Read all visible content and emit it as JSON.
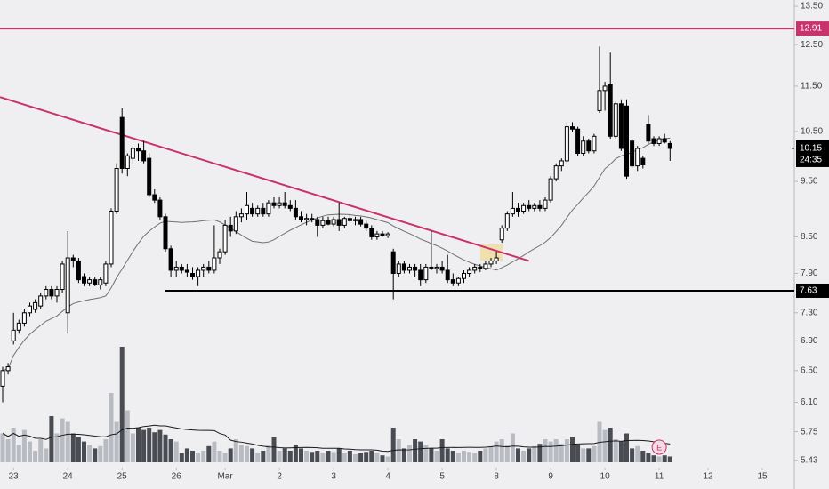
{
  "chart_data": {
    "type": "candlestick",
    "scale": "log",
    "ylim": [
      5.36,
      13.67
    ],
    "yticks": [
      {
        "value": 13.5,
        "label": "13.50"
      },
      {
        "value": 12.5,
        "label": "12.50"
      },
      {
        "value": 11.5,
        "label": "11.50"
      },
      {
        "value": 10.5,
        "label": "10.50"
      },
      {
        "value": 9.5,
        "label": "9.50"
      },
      {
        "value": 8.5,
        "label": "8.50"
      },
      {
        "value": 7.9,
        "label": "7.90"
      },
      {
        "value": 7.3,
        "label": "7.30"
      },
      {
        "value": 6.9,
        "label": "6.90"
      },
      {
        "value": 6.5,
        "label": "6.50"
      },
      {
        "value": 6.1,
        "label": "6.10"
      },
      5.75,
      5.43
    ],
    "xticks": [
      {
        "value": 2,
        "label": "23"
      },
      {
        "value": 12,
        "label": "24"
      },
      {
        "value": 22,
        "label": "25"
      },
      {
        "value": 32,
        "label": "26"
      },
      {
        "value": 41,
        "label": "Mar"
      },
      {
        "value": 51,
        "label": "2"
      },
      {
        "value": 61,
        "label": "3"
      },
      {
        "value": 71,
        "label": "4"
      },
      {
        "value": 81,
        "label": "5"
      },
      {
        "value": 91,
        "label": "8"
      },
      {
        "value": 101,
        "label": "9"
      },
      {
        "value": 111,
        "label": "10"
      },
      {
        "value": 121,
        "label": "11"
      },
      {
        "value": 130,
        "label": "12"
      },
      {
        "value": 140,
        "label": "15"
      }
    ],
    "candles": [
      [
        6.3,
        6.55,
        6.1,
        6.5
      ],
      [
        6.5,
        6.6,
        6.45,
        6.55
      ],
      [
        6.9,
        7.3,
        6.85,
        7.05
      ],
      [
        7.05,
        7.2,
        7.0,
        7.15
      ],
      [
        7.15,
        7.35,
        7.1,
        7.3
      ],
      [
        7.3,
        7.45,
        7.25,
        7.4
      ],
      [
        7.35,
        7.5,
        7.3,
        7.45
      ],
      [
        7.4,
        7.6,
        7.35,
        7.55
      ],
      [
        7.55,
        7.7,
        7.5,
        7.65
      ],
      [
        7.65,
        7.7,
        7.5,
        7.55
      ],
      [
        7.55,
        7.7,
        7.45,
        7.65
      ],
      [
        7.65,
        8.1,
        7.6,
        8.05
      ],
      [
        7.3,
        8.6,
        7.0,
        8.15
      ],
      [
        8.15,
        8.2,
        8.0,
        8.1
      ],
      [
        8.1,
        8.15,
        7.75,
        7.8
      ],
      [
        7.85,
        7.9,
        7.7,
        7.75
      ],
      [
        7.75,
        7.85,
        7.7,
        7.8
      ],
      [
        7.8,
        7.85,
        7.7,
        7.72
      ],
      [
        7.72,
        7.85,
        7.65,
        7.8
      ],
      [
        7.75,
        8.1,
        7.7,
        8.05
      ],
      [
        8.05,
        9.0,
        8.0,
        8.95
      ],
      [
        8.95,
        9.85,
        8.9,
        9.75
      ],
      [
        10.8,
        11.0,
        9.65,
        9.75
      ],
      [
        9.75,
        10.05,
        9.6,
        10.0
      ],
      [
        9.95,
        10.2,
        9.85,
        10.15
      ],
      [
        10.15,
        10.25,
        9.9,
        10.1
      ],
      [
        10.1,
        10.3,
        9.85,
        9.9
      ],
      [
        9.95,
        10.05,
        9.2,
        9.25
      ],
      [
        9.25,
        9.35,
        9.1,
        9.15
      ],
      [
        9.15,
        9.2,
        8.8,
        8.85
      ],
      [
        8.85,
        8.9,
        8.25,
        8.3
      ],
      [
        8.3,
        8.35,
        7.85,
        7.95
      ],
      [
        7.95,
        8.1,
        7.85,
        8.0
      ],
      [
        8.0,
        8.05,
        7.9,
        7.95
      ],
      [
        7.95,
        8.05,
        7.85,
        7.92
      ],
      [
        7.9,
        8.0,
        7.8,
        7.85
      ],
      [
        7.85,
        8.0,
        7.7,
        7.95
      ],
      [
        7.95,
        8.05,
        7.85,
        8.0
      ],
      [
        8.0,
        8.1,
        7.9,
        7.95
      ],
      [
        7.95,
        8.7,
        7.9,
        8.15
      ],
      [
        8.15,
        8.3,
        8.05,
        8.25
      ],
      [
        8.25,
        8.8,
        8.2,
        8.7
      ],
      [
        8.7,
        8.85,
        8.5,
        8.6
      ],
      [
        8.6,
        8.95,
        8.55,
        8.85
      ],
      [
        8.85,
        9.0,
        8.75,
        8.9
      ],
      [
        8.9,
        9.3,
        8.8,
        9.05
      ],
      [
        9.0,
        9.1,
        8.85,
        8.9
      ],
      [
        8.9,
        9.05,
        8.85,
        9.0
      ],
      [
        9.0,
        9.1,
        8.85,
        8.9
      ],
      [
        8.9,
        9.15,
        8.85,
        9.1
      ],
      [
        9.1,
        9.2,
        9.0,
        9.05
      ],
      [
        9.05,
        9.2,
        9.0,
        9.1
      ],
      [
        9.1,
        9.3,
        9.0,
        9.05
      ],
      [
        9.05,
        9.15,
        8.95,
        9.0
      ],
      [
        9.0,
        9.15,
        8.8,
        8.85
      ],
      [
        8.85,
        8.95,
        8.75,
        8.8
      ],
      [
        8.8,
        8.9,
        8.7,
        8.82
      ],
      [
        8.82,
        8.9,
        8.75,
        8.8
      ],
      [
        8.8,
        8.85,
        8.5,
        8.7
      ],
      [
        8.7,
        8.85,
        8.65,
        8.78
      ],
      [
        8.78,
        8.85,
        8.7,
        8.72
      ],
      [
        8.72,
        8.85,
        8.68,
        8.8
      ],
      [
        8.8,
        9.1,
        8.6,
        8.7
      ],
      [
        8.7,
        8.85,
        8.65,
        8.82
      ],
      [
        8.82,
        8.9,
        8.75,
        8.78
      ],
      [
        8.78,
        8.85,
        8.7,
        8.8
      ],
      [
        8.8,
        8.85,
        8.68,
        8.72
      ],
      [
        8.72,
        8.78,
        8.6,
        8.65
      ],
      [
        8.65,
        8.7,
        8.45,
        8.5
      ],
      [
        8.5,
        8.6,
        8.45,
        8.55
      ],
      [
        8.55,
        8.6,
        8.5,
        8.52
      ],
      [
        8.52,
        8.58,
        8.48,
        8.55
      ],
      [
        8.25,
        8.3,
        7.5,
        7.9
      ],
      [
        7.9,
        8.1,
        7.85,
        8.05
      ],
      [
        8.05,
        8.1,
        7.9,
        7.95
      ],
      [
        7.95,
        8.05,
        7.9,
        8.0
      ],
      [
        8.0,
        8.05,
        7.85,
        7.95
      ],
      [
        7.95,
        8.05,
        7.7,
        7.8
      ],
      [
        7.8,
        8.05,
        7.75,
        8.0
      ],
      [
        8.0,
        8.6,
        7.95,
        7.98
      ],
      [
        7.98,
        8.05,
        7.9,
        8.0
      ],
      [
        8.0,
        8.1,
        7.9,
        7.95
      ],
      [
        7.95,
        8.2,
        7.75,
        7.8
      ],
      [
        7.8,
        7.9,
        7.7,
        7.75
      ],
      [
        7.75,
        7.85,
        7.7,
        7.82
      ],
      [
        7.82,
        7.95,
        7.75,
        7.9
      ],
      [
        7.9,
        8.0,
        7.85,
        7.95
      ],
      [
        7.95,
        8.05,
        7.9,
        8.0
      ],
      [
        8.0,
        8.05,
        7.92,
        7.98
      ],
      [
        7.98,
        8.1,
        7.95,
        8.05
      ],
      [
        8.05,
        8.15,
        8.0,
        8.1
      ],
      [
        8.1,
        8.25,
        8.05,
        8.15
      ],
      [
        8.45,
        8.7,
        8.4,
        8.65
      ],
      [
        8.65,
        8.95,
        8.6,
        8.9
      ],
      [
        8.9,
        9.3,
        8.85,
        9.0
      ],
      [
        9.0,
        9.1,
        8.85,
        8.95
      ],
      [
        8.95,
        9.1,
        8.9,
        9.05
      ],
      [
        9.05,
        9.15,
        8.95,
        9.0
      ],
      [
        9.0,
        9.1,
        8.95,
        9.05
      ],
      [
        9.05,
        9.15,
        8.95,
        9.0
      ],
      [
        9.0,
        9.2,
        8.95,
        9.15
      ],
      [
        9.15,
        9.6,
        9.1,
        9.55
      ],
      [
        9.55,
        9.85,
        9.5,
        9.8
      ],
      [
        9.8,
        9.95,
        9.7,
        9.9
      ],
      [
        9.9,
        10.7,
        9.85,
        10.6
      ],
      [
        10.6,
        10.7,
        10.5,
        10.55
      ],
      [
        10.55,
        10.6,
        10.0,
        10.05
      ],
      [
        10.05,
        10.4,
        10.0,
        10.3
      ],
      [
        10.3,
        10.35,
        10.05,
        10.1
      ],
      [
        10.1,
        10.45,
        10.05,
        10.4
      ],
      [
        10.95,
        12.45,
        10.9,
        11.4
      ],
      [
        11.4,
        11.6,
        10.95,
        11.5
      ],
      [
        11.55,
        12.3,
        10.35,
        10.4
      ],
      [
        10.4,
        11.15,
        10.35,
        11.1
      ],
      [
        11.1,
        11.2,
        10.1,
        10.15
      ],
      [
        11.05,
        11.2,
        9.55,
        9.6
      ],
      [
        10.3,
        10.35,
        9.75,
        9.8
      ],
      [
        9.8,
        10.2,
        9.7,
        10.15
      ],
      [
        9.95,
        10.0,
        9.75,
        9.82
      ],
      [
        10.65,
        10.85,
        10.25,
        10.3
      ],
      [
        10.35,
        10.4,
        10.2,
        10.25
      ],
      [
        10.25,
        10.4,
        10.2,
        10.35
      ],
      [
        10.35,
        10.45,
        10.25,
        10.28
      ],
      [
        10.25,
        10.3,
        9.9,
        10.15
      ]
    ],
    "volume": [
      25,
      20,
      30,
      15,
      28,
      18,
      10,
      20,
      12,
      40,
      25,
      38,
      35,
      25,
      22,
      18,
      15,
      12,
      14,
      20,
      60,
      35,
      100,
      45,
      25,
      30,
      28,
      30,
      26,
      28,
      24,
      20,
      18,
      8,
      12,
      10,
      8,
      10,
      14,
      18,
      10,
      8,
      12,
      20,
      15,
      14,
      12,
      8,
      10,
      15,
      22,
      10,
      12,
      10,
      15,
      12,
      10,
      9,
      10,
      8,
      10,
      9,
      12,
      8,
      10,
      7,
      8,
      9,
      10,
      8,
      6,
      5,
      30,
      20,
      12,
      15,
      20,
      18,
      15,
      12,
      10,
      20,
      12,
      10,
      8,
      10,
      9,
      8,
      10,
      12,
      14,
      18,
      20,
      15,
      25,
      12,
      10,
      12,
      14,
      16,
      20,
      18,
      20,
      16,
      20,
      22,
      15,
      12,
      12,
      14,
      35,
      28,
      30,
      20,
      18,
      25,
      12,
      14,
      10,
      8,
      6,
      5,
      6,
      5
    ],
    "volume_lim": [
      0,
      100
    ],
    "ma_period": 20,
    "volume_ma_period": 20,
    "up_color": "#ffffff",
    "down_color": "#000000",
    "volume_up_color": "#b9bbc2",
    "volume_down_color": "#4a4c54",
    "ma_color": "#707070",
    "resistance": {
      "value": 12.91,
      "color": "#c8336e"
    },
    "support": {
      "value": 7.63,
      "color": "#000000",
      "from": 30
    },
    "trendline": {
      "from": [
        0,
        11.25
      ],
      "to": [
        97,
        8.1
      ],
      "color": "#c8336e"
    },
    "last_price": {
      "value": 10.15,
      "countdown": "24:35"
    },
    "earnings_marker": "E"
  }
}
